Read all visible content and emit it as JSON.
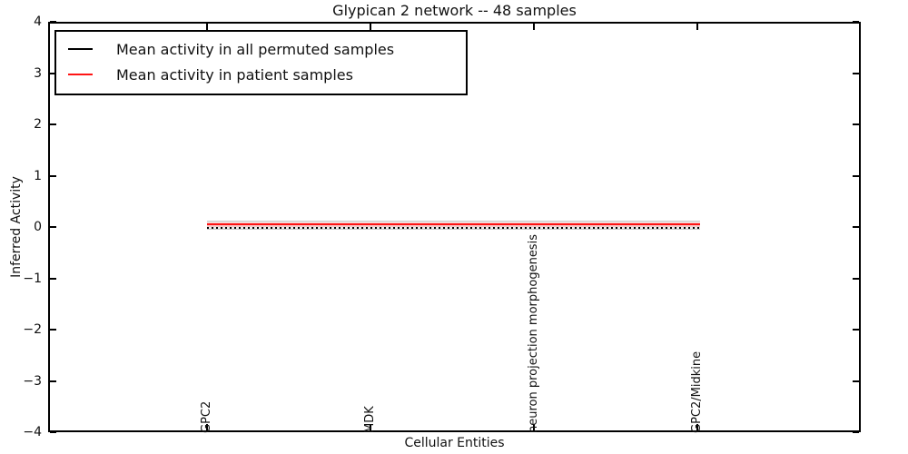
{
  "figure": {
    "title": "Glypican 2 network -- 48 samples",
    "xlabel": "Cellular Entities",
    "ylabel": "Inferred Activity"
  },
  "legend": {
    "entries": [
      {
        "label": "Mean activity in all permuted samples",
        "color": "#000000"
      },
      {
        "label": "Mean activity in patient samples",
        "color": "#ff1414"
      }
    ]
  },
  "chart_data": {
    "type": "line",
    "title": "Glypican 2 network -- 48 samples",
    "xlabel": "Cellular Entities",
    "ylabel": "Inferred Activity",
    "ylim": [
      -4,
      4
    ],
    "yticks": [
      4,
      3,
      2,
      1,
      0,
      -1,
      -2,
      -3,
      -4
    ],
    "grid": false,
    "legend_position": "upper left",
    "categories": [
      "GPC2",
      "MDK",
      "neuron projection morphogenesis",
      "GPC2/Midkine"
    ],
    "series": [
      {
        "name": "Mean activity in all permuted samples",
        "color": "#000000",
        "style": "dotted",
        "values": [
          0.0,
          0.0,
          0.0,
          0.0
        ]
      },
      {
        "name": "Mean activity in patient samples",
        "color": "#ff1414",
        "style": "solid",
        "values": [
          0.05,
          0.05,
          0.05,
          0.05
        ]
      }
    ],
    "uncertainty_band": {
      "high": 0.12,
      "low": -0.05,
      "color": "#ececec",
      "edge_color": "#c9c9c9"
    },
    "patient_halo_band": {
      "high": 0.09,
      "low": 0.0,
      "color": "#f5caca"
    }
  }
}
